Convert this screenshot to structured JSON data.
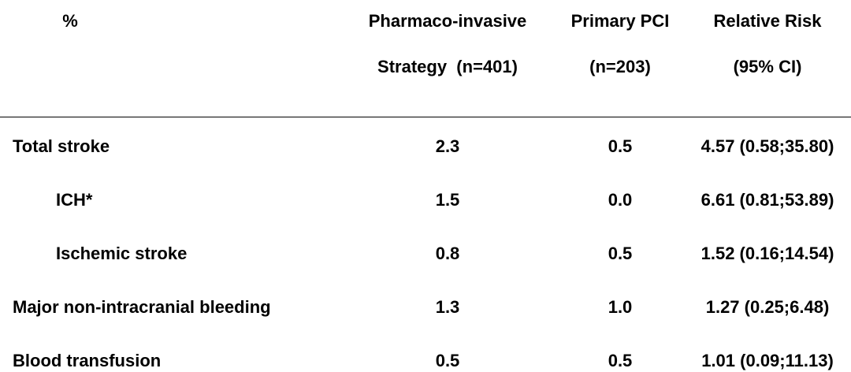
{
  "table": {
    "headers": {
      "col0": "%",
      "col1_line1": "Pharmaco-invasive",
      "col1_line2": "Strategy  (n=401)",
      "col2_line1": "Primary PCI",
      "col2_line2": "(n=203)",
      "col3_line1": "Relative Risk",
      "col3_line2": "(95% CI)"
    },
    "rows": [
      {
        "label": "Total stroke",
        "indent": false,
        "pharmaco": "2.3",
        "pci": "0.5",
        "rr": "4.57 (0.58;35.80)"
      },
      {
        "label": "ICH*",
        "indent": true,
        "pharmaco": "1.5",
        "pci": "0.0",
        "rr": "6.61 (0.81;53.89)"
      },
      {
        "label": "Ischemic stroke",
        "indent": true,
        "pharmaco": "0.8",
        "pci": "0.5",
        "rr": "1.52 (0.16;14.54)"
      },
      {
        "label": "Major non-intracranial bleeding",
        "indent": false,
        "pharmaco": "1.3",
        "pci": "1.0",
        "rr": "1.27 (0.25;6.48)"
      },
      {
        "label": "Blood transfusion",
        "indent": false,
        "pharmaco": "0.5",
        "pci": "0.5",
        "rr": "1.01 (0.09;11.13)"
      }
    ]
  }
}
